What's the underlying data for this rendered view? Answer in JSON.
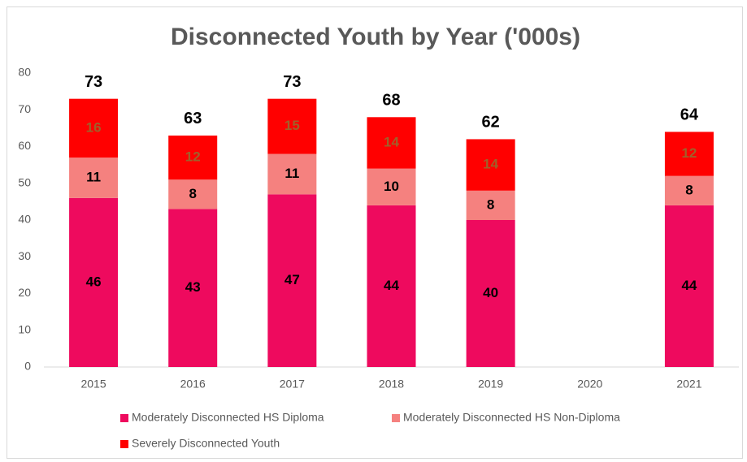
{
  "chart_data": {
    "type": "stacked_bar",
    "title": "Disconnected Youth by Year ('000s)",
    "categories": [
      "2015",
      "2016",
      "2017",
      "2018",
      "2019",
      "2020",
      "2021"
    ],
    "series": [
      {
        "name": "Moderately Disconnected HS Diploma",
        "color": "#ee0a5e",
        "label_color": "#000000",
        "values": [
          46,
          43,
          47,
          44,
          40,
          null,
          44
        ]
      },
      {
        "name": "Moderately Disconnected HS Non-Diploma",
        "color": "#f5817f",
        "label_color": "#000000",
        "values": [
          11,
          8,
          11,
          10,
          8,
          null,
          8
        ]
      },
      {
        "name": "Severely Disconnected Youth",
        "color": "#ff0000",
        "label_color": "#a0602a",
        "values": [
          16,
          12,
          15,
          14,
          14,
          null,
          12
        ]
      }
    ],
    "totals": [
      73,
      63,
      73,
      68,
      62,
      null,
      64
    ],
    "ylim": [
      0,
      80
    ],
    "yticks": [
      0,
      10,
      20,
      30,
      40,
      50,
      60,
      70,
      80
    ],
    "grid": false,
    "legend": "bottom"
  }
}
